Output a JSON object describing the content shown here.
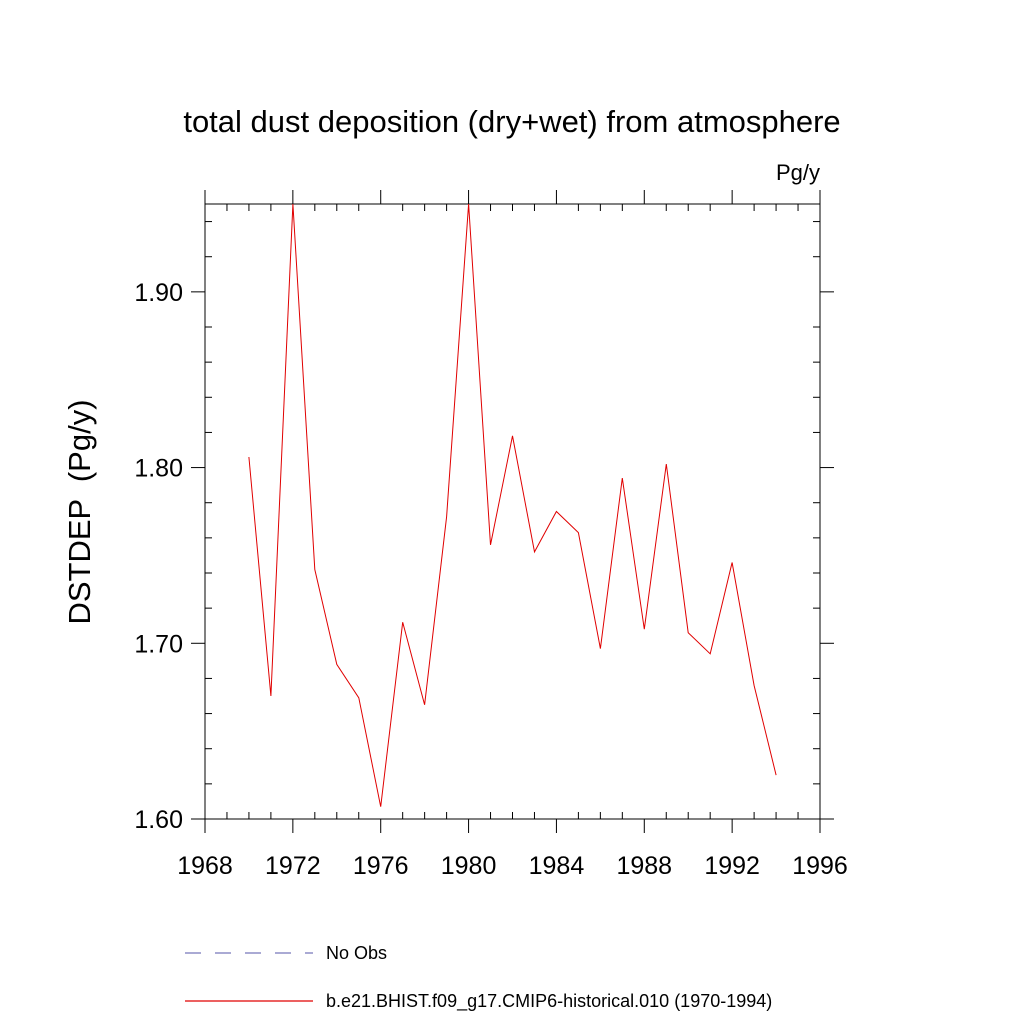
{
  "chart_data": {
    "type": "line",
    "title": "total dust deposition (dry+wet) from atmosphere",
    "units_label": "Pg/y",
    "ylabel": "DSTDEP  (Pg/y)",
    "xlabel": "",
    "xlim": [
      1968,
      1996
    ],
    "ylim": [
      1.6,
      1.95
    ],
    "x_ticks": [
      1968,
      1972,
      1976,
      1980,
      1984,
      1988,
      1992,
      1996
    ],
    "x_tick_labels": [
      "1968",
      "1972",
      "1976",
      "1980",
      "1984",
      "1988",
      "1992",
      "1996"
    ],
    "x_minor_step": 1,
    "y_ticks": [
      1.6,
      1.7,
      1.8,
      1.9
    ],
    "y_tick_labels": [
      "1.60",
      "1.70",
      "1.80",
      "1.90"
    ],
    "y_minor_step": 0.02,
    "grid": false,
    "series": [
      {
        "name": "b.e21.BHIST.f09_g17.CMIP6-historical.010 (1970-1994)",
        "color": "#e00000",
        "x": [
          1970,
          1971,
          1972,
          1973,
          1974,
          1975,
          1976,
          1977,
          1978,
          1979,
          1980,
          1981,
          1982,
          1983,
          1984,
          1985,
          1986,
          1987,
          1988,
          1989,
          1990,
          1991,
          1992,
          1993,
          1994
        ],
        "values": [
          1.806,
          1.67,
          1.95,
          1.742,
          1.688,
          1.669,
          1.607,
          1.712,
          1.665,
          1.772,
          1.95,
          1.756,
          1.818,
          1.752,
          1.775,
          1.763,
          1.697,
          1.794,
          1.708,
          1.802,
          1.706,
          1.694,
          1.746,
          1.676,
          1.625
        ]
      }
    ],
    "legend": [
      {
        "label": "No Obs",
        "style": "dashed",
        "color": "#7777bb"
      },
      {
        "label": "b.e21.BHIST.f09_g17.CMIP6-historical.010 (1970-1994)",
        "style": "solid",
        "color": "#e00000"
      }
    ],
    "legend_position": "bottom"
  }
}
